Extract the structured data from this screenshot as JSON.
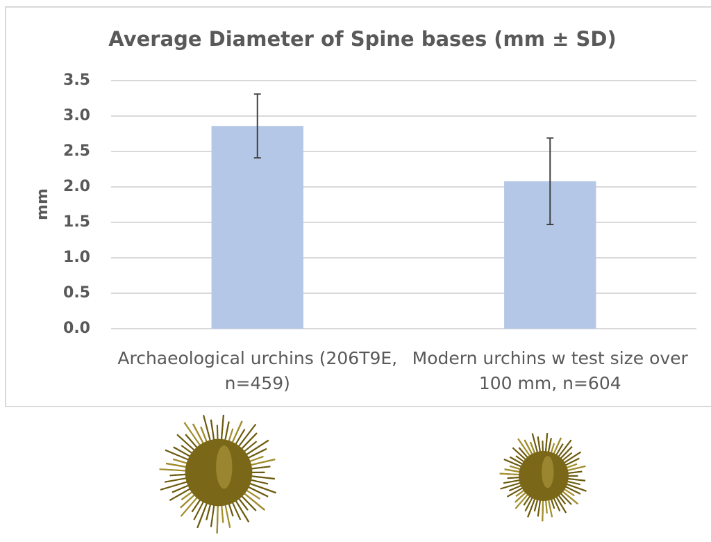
{
  "chart_data": {
    "type": "bar",
    "title": "Average Diameter of Spine bases (mm ± SD)",
    "y_label": "mm",
    "categories": [
      "Archaeological urchins (206T9E, n=459)",
      "Modern urchins w test size over 100 mm, n=604"
    ],
    "values": [
      2.86,
      2.08
    ],
    "errors": [
      0.45,
      0.61
    ],
    "color": "#b4c7e7",
    "ylim": [
      0,
      3.5
    ],
    "yticks": [
      {
        "value": 0,
        "label": "0.0"
      },
      0.5,
      {
        "value": 1,
        "label": "1.0"
      },
      1.5,
      {
        "value": 2,
        "label": "2.0"
      },
      2.5,
      {
        "value": 3,
        "label": "3.0"
      },
      3.5
    ],
    "grid": true
  }
}
